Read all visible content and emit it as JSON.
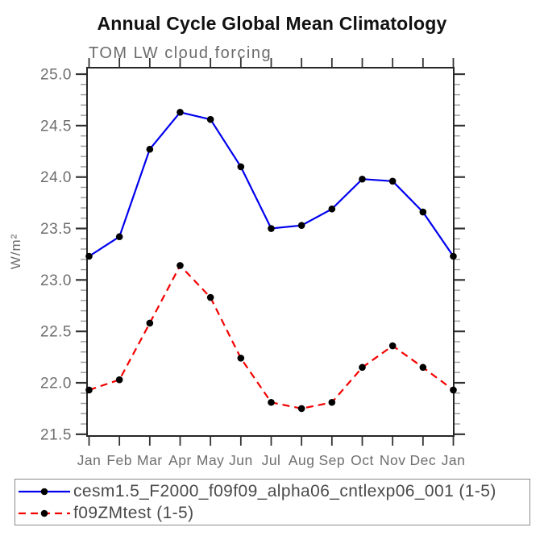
{
  "title": "Annual Cycle Global Mean Climatology",
  "subtitle": "TOM LW cloud forcing",
  "chart_data": {
    "type": "line",
    "categories": [
      "Jan",
      "Feb",
      "Mar",
      "Apr",
      "May",
      "Jun",
      "Jul",
      "Aug",
      "Sep",
      "Oct",
      "Nov",
      "Dec",
      "Jan"
    ],
    "series": [
      {
        "name": "cesm1.5_F2000_f09f09_alpha06_cntlexp06_001 (1-5)",
        "color": "#0000ee",
        "style": "solid",
        "marker": "filled-circle",
        "marker_color": "#000000",
        "values": [
          23.23,
          23.42,
          24.27,
          24.63,
          24.56,
          24.1,
          23.5,
          23.53,
          23.69,
          23.98,
          23.96,
          23.66,
          23.23
        ]
      },
      {
        "name": "f09ZMtest (1-5)",
        "color": "#f40000",
        "style": "dashed",
        "marker": "filled-circle",
        "marker_color": "#000000",
        "values": [
          21.93,
          22.03,
          22.58,
          23.14,
          22.83,
          22.24,
          21.81,
          21.75,
          21.81,
          22.15,
          22.36,
          22.15,
          21.93
        ]
      }
    ],
    "xlabel": "",
    "ylabel": "W/m²",
    "ylim": [
      21.5,
      25.0
    ],
    "ytick_step": 0.5,
    "yminor_step": 0.1,
    "grid": "off",
    "legend_position": "bottom"
  }
}
